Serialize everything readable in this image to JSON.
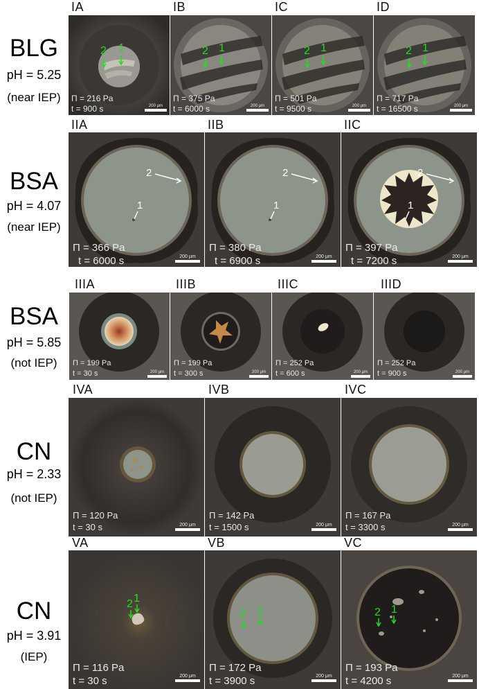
{
  "rows": [
    {
      "protein": "BLG",
      "ph": "pH = 5.25",
      "iep": "(near IEP)",
      "panels": [
        {
          "label": "IA",
          "pi": "Π = 216 Pa",
          "t": "t = 900 s",
          "scale": "200 μm"
        },
        {
          "label": "IB",
          "pi": "Π = 375 Pa",
          "t": "t = 6000 s",
          "scale": "200 μm"
        },
        {
          "label": "IC",
          "pi": "Π = 501 Pa",
          "t": "t = 9500 s",
          "scale": "200 μm"
        },
        {
          "label": "ID",
          "pi": "Π = 717 Pa",
          "t": "t = 16500 s",
          "scale": "200 μm"
        }
      ]
    },
    {
      "protein": "BSA",
      "ph": "pH = 4.07",
      "iep": "(near IEP)",
      "panels": [
        {
          "label": "IIA",
          "pi": "Π = 366 Pa",
          "t": "t = 6000 s",
          "scale": "200 μm"
        },
        {
          "label": "IIB",
          "pi": "Π = 380 Pa",
          "t": "t = 6900 s",
          "scale": "200 μm"
        },
        {
          "label": "IIC",
          "pi": "Π = 397 Pa",
          "t": "t = 7200 s",
          "scale": "200 μm"
        }
      ]
    },
    {
      "protein": "BSA",
      "ph": "pH = 5.85",
      "iep": "(not IEP)",
      "panels": [
        {
          "label": "IIIA",
          "pi": "Π = 199 Pa",
          "t": "t = 30 s",
          "scale": "200 μm"
        },
        {
          "label": "IIIB",
          "pi": "Π = 199 Pa",
          "t": "t = 300 s",
          "scale": "200 μm"
        },
        {
          "label": "IIIC",
          "pi": "Π = 252 Pa",
          "t": "t = 600 s",
          "scale": "200 μm"
        },
        {
          "label": "IIID",
          "pi": "Π = 252 Pa",
          "t": "t = 900 s",
          "scale": "200 μm"
        }
      ]
    },
    {
      "protein": "CN",
      "ph": "pH = 2.33",
      "iep": "(not IEP)",
      "panels": [
        {
          "label": "IVA",
          "pi": "Π = 120 Pa",
          "t": "t = 30 s",
          "scale": "200 μm"
        },
        {
          "label": "IVB",
          "pi": "Π = 142 Pa",
          "t": "t = 1500 s",
          "scale": "200 μm"
        },
        {
          "label": "IVC",
          "pi": "Π = 167 Pa",
          "t": "t = 3300 s",
          "scale": "200 μm"
        }
      ]
    },
    {
      "protein": "CN",
      "ph": "pH = 3.91",
      "iep": "(IEP)",
      "panels": [
        {
          "label": "VA",
          "pi": "Π = 116 Pa",
          "t": "t = 30 s",
          "scale": "200 μm"
        },
        {
          "label": "VB",
          "pi": "Π = 172 Pa",
          "t": "t = 3900 s",
          "scale": "200 μm"
        },
        {
          "label": "VC",
          "pi": "Π = 193 Pa",
          "t": "t = 4200 s",
          "scale": "200 μm"
        }
      ]
    }
  ],
  "markers": {
    "one": "1",
    "two": "2"
  },
  "colors": {
    "green_marker": "#22dd22",
    "white_marker": "#ffffff"
  }
}
